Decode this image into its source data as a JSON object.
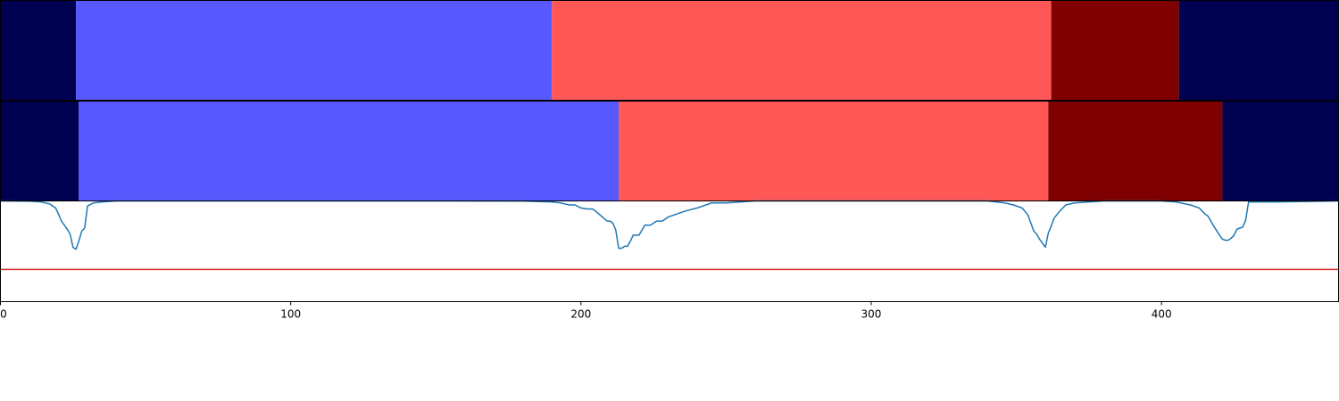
{
  "chart_data": [
    {
      "type": "heatmap",
      "title": "",
      "xlim": [
        0,
        461
      ],
      "colors": {
        "a": "#000050",
        "b": "#5858ff",
        "c": "#ff5656",
        "d": "#7f0000"
      },
      "segments": [
        {
          "start": 0,
          "end": 26,
          "class": "a"
        },
        {
          "start": 26,
          "end": 190,
          "class": "b"
        },
        {
          "start": 190,
          "end": 362,
          "class": "c"
        },
        {
          "start": 362,
          "end": 406,
          "class": "d"
        },
        {
          "start": 406,
          "end": 461,
          "class": "a"
        }
      ]
    },
    {
      "type": "heatmap",
      "title": "",
      "xlim": [
        0,
        461
      ],
      "colors": {
        "a": "#000050",
        "b": "#5858ff",
        "c": "#ff5656",
        "d": "#7f0000"
      },
      "segments": [
        {
          "start": 0,
          "end": 27,
          "class": "a"
        },
        {
          "start": 27,
          "end": 213,
          "class": "b"
        },
        {
          "start": 213,
          "end": 361,
          "class": "c"
        },
        {
          "start": 361,
          "end": 421,
          "class": "d"
        },
        {
          "start": 421,
          "end": 461,
          "class": "a"
        }
      ]
    },
    {
      "type": "line",
      "title": "",
      "xlabel": "",
      "ylabel": "",
      "xlim": [
        0,
        461
      ],
      "ylim": [
        0,
        1
      ],
      "xticks": [
        0,
        100,
        200,
        300,
        400
      ],
      "threshold": {
        "value": 0.32,
        "color": "#d62728"
      },
      "series": [
        {
          "color": "#1f77b4",
          "x": [
            0,
            10,
            14,
            17,
            19,
            20,
            21,
            22,
            23,
            24,
            25,
            26,
            27,
            28,
            29,
            30,
            32,
            35,
            40,
            60,
            100,
            150,
            180,
            190,
            193,
            196,
            198,
            200,
            202,
            204,
            205,
            207,
            209,
            210,
            211,
            212,
            213,
            214,
            215,
            216,
            217,
            218,
            220,
            222,
            224,
            226,
            228,
            230,
            232,
            236,
            240,
            245,
            250,
            255,
            260,
            300,
            340,
            346,
            349,
            352,
            354,
            356,
            357,
            358,
            359,
            360,
            361,
            362,
            363,
            365,
            367,
            370,
            375,
            380,
            400,
            405,
            410,
            413,
            415,
            416,
            418,
            420,
            421,
            422,
            423,
            424,
            425,
            426,
            427,
            428,
            429,
            430,
            440,
            461
          ],
          "y": [
            1.0,
            0.998,
            0.99,
            0.97,
            0.93,
            0.87,
            0.8,
            0.76,
            0.72,
            0.67,
            0.54,
            0.52,
            0.6,
            0.7,
            0.73,
            0.95,
            0.98,
            0.99,
            1.0,
            1.0,
            1.0,
            1.0,
            0.999,
            0.99,
            0.98,
            0.96,
            0.96,
            0.93,
            0.92,
            0.92,
            0.9,
            0.85,
            0.8,
            0.8,
            0.78,
            0.71,
            0.53,
            0.53,
            0.55,
            0.55,
            0.6,
            0.66,
            0.66,
            0.76,
            0.76,
            0.8,
            0.8,
            0.84,
            0.86,
            0.9,
            0.93,
            0.98,
            0.98,
            0.99,
            1.0,
            1.0,
            1.0,
            0.98,
            0.96,
            0.93,
            0.86,
            0.7,
            0.67,
            0.62,
            0.58,
            0.54,
            0.68,
            0.75,
            0.83,
            0.9,
            0.96,
            0.98,
            0.99,
            1.0,
            1.0,
            0.99,
            0.96,
            0.93,
            0.87,
            0.85,
            0.75,
            0.66,
            0.62,
            0.61,
            0.61,
            0.63,
            0.66,
            0.72,
            0.73,
            0.74,
            0.81,
            0.99,
            0.99,
            1.0
          ]
        }
      ]
    }
  ]
}
